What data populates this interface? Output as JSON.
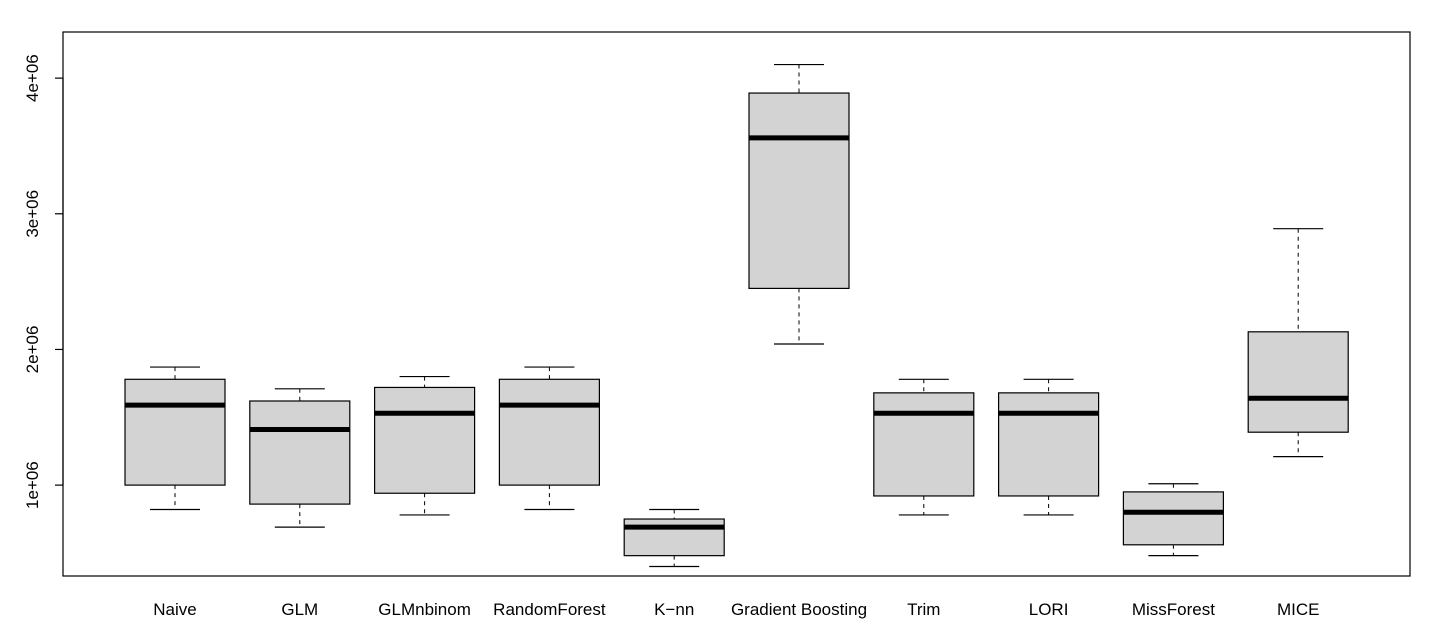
{
  "chart_data": {
    "type": "boxplot",
    "title": "",
    "xlabel": "",
    "ylabel": "",
    "ylim": [
      330000,
      4340000
    ],
    "y_ticks": [
      1000000,
      2000000,
      3000000,
      4000000
    ],
    "y_tick_labels": [
      "1e+06",
      "2e+06",
      "3e+06",
      "4e+06"
    ],
    "box_fill": "#d3d3d3",
    "categories": [
      "Naive",
      "GLM",
      "GLMnbinom",
      "RandomForest",
      "K−nn",
      "Gradient Boosting",
      "Trim",
      "LORI",
      "MissForest",
      "MICE"
    ],
    "boxes": [
      {
        "min": 820000,
        "q1": 1000000,
        "median": 1590000,
        "q3": 1780000,
        "max": 1870000
      },
      {
        "min": 690000,
        "q1": 860000,
        "median": 1410000,
        "q3": 1620000,
        "max": 1710000
      },
      {
        "min": 780000,
        "q1": 940000,
        "median": 1530000,
        "q3": 1720000,
        "max": 1800000
      },
      {
        "min": 820000,
        "q1": 1000000,
        "median": 1590000,
        "q3": 1780000,
        "max": 1870000
      },
      {
        "min": 400000,
        "q1": 480000,
        "median": 690000,
        "q3": 750000,
        "max": 820000
      },
      {
        "min": 2040000,
        "q1": 2450000,
        "median": 3560000,
        "q3": 3890000,
        "max": 4100000
      },
      {
        "min": 780000,
        "q1": 920000,
        "median": 1530000,
        "q3": 1680000,
        "max": 1780000
      },
      {
        "min": 780000,
        "q1": 920000,
        "median": 1530000,
        "q3": 1680000,
        "max": 1780000
      },
      {
        "min": 480000,
        "q1": 560000,
        "median": 800000,
        "q3": 950000,
        "max": 1010000
      },
      {
        "min": 1210000,
        "q1": 1390000,
        "median": 1640000,
        "q3": 2130000,
        "max": 2890000
      }
    ]
  }
}
